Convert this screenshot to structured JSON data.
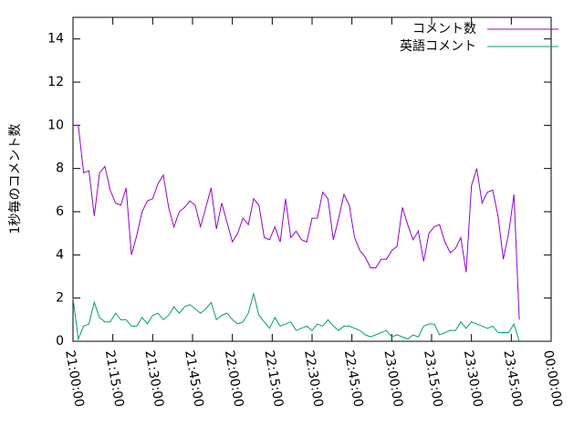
{
  "chart_data": {
    "type": "line",
    "ylabel": "1秒毎のコメント数",
    "x": [
      "21:00:00",
      "21:02:00",
      "21:04:00",
      "21:06:00",
      "21:08:00",
      "21:10:00",
      "21:12:00",
      "21:14:00",
      "21:16:00",
      "21:18:00",
      "21:20:00",
      "21:22:00",
      "21:24:00",
      "21:26:00",
      "21:28:00",
      "21:30:00",
      "21:32:00",
      "21:34:00",
      "21:36:00",
      "21:38:00",
      "21:40:00",
      "21:42:00",
      "21:44:00",
      "21:46:00",
      "21:48:00",
      "21:50:00",
      "21:52:00",
      "21:54:00",
      "21:56:00",
      "21:58:00",
      "22:00:00",
      "22:02:00",
      "22:04:00",
      "22:06:00",
      "22:08:00",
      "22:10:00",
      "22:12:00",
      "22:14:00",
      "22:16:00",
      "22:18:00",
      "22:20:00",
      "22:22:00",
      "22:24:00",
      "22:26:00",
      "22:28:00",
      "22:30:00",
      "22:32:00",
      "22:34:00",
      "22:36:00",
      "22:38:00",
      "22:40:00",
      "22:42:00",
      "22:44:00",
      "22:46:00",
      "22:48:00",
      "22:50:00",
      "22:52:00",
      "22:54:00",
      "22:56:00",
      "22:58:00",
      "23:00:00",
      "23:02:00",
      "23:04:00",
      "23:06:00",
      "23:08:00",
      "23:10:00",
      "23:12:00",
      "23:14:00",
      "23:16:00",
      "23:18:00",
      "23:20:00",
      "23:22:00",
      "23:24:00",
      "23:26:00",
      "23:28:00",
      "23:30:00",
      "23:32:00",
      "23:34:00",
      "23:36:00",
      "23:38:00",
      "23:40:00",
      "23:42:00",
      "23:44:00",
      "23:46:00",
      "23:48:00"
    ],
    "series": [
      {
        "name": "コメント数",
        "color": "#9400d3",
        "values": [
          10,
          10,
          7.8,
          7.9,
          5.8,
          7.8,
          8.1,
          7,
          6.4,
          6.3,
          7.1,
          4,
          4.9,
          6,
          6.5,
          6.6,
          7.3,
          7.7,
          6.2,
          5.3,
          6,
          6.2,
          6.5,
          6.3,
          5.3,
          6.2,
          7.1,
          5.2,
          6.4,
          5.5,
          4.6,
          5,
          5.7,
          5.4,
          6.6,
          6.3,
          4.8,
          4.7,
          5.3,
          4.6,
          6.6,
          4.8,
          5.1,
          4.7,
          4.6,
          5.7,
          5.7,
          6.9,
          6.6,
          4.7,
          5.7,
          6.8,
          6.3,
          4.8,
          4.2,
          3.9,
          3.4,
          3.4,
          3.8,
          3.8,
          4.2,
          4.4,
          6.2,
          5.4,
          4.7,
          5.1,
          3.7,
          5,
          5.3,
          5.4,
          4.6,
          4.1,
          4.3,
          4.8,
          3.2,
          7.2,
          8,
          6.4,
          6.9,
          7,
          5.8,
          3.8,
          5,
          6.8,
          1
        ]
      },
      {
        "name": "英語コメント",
        "color": "#009e73",
        "values": [
          2,
          0.1,
          0.7,
          0.8,
          1.8,
          1.1,
          0.9,
          0.9,
          1.3,
          1,
          1,
          0.7,
          0.7,
          1.1,
          0.8,
          1.2,
          1.3,
          1,
          1.2,
          1.6,
          1.3,
          1.6,
          1.7,
          1.5,
          1.3,
          1.5,
          1.8,
          1,
          1.2,
          1.3,
          1,
          0.8,
          0.9,
          1.3,
          2.2,
          1.2,
          0.9,
          0.6,
          1.1,
          0.7,
          0.8,
          0.9,
          0.5,
          0.6,
          0.7,
          0.5,
          0.8,
          0.7,
          1,
          0.7,
          0.5,
          0.7,
          0.7,
          0.6,
          0.5,
          0.3,
          0.2,
          0.3,
          0.4,
          0.5,
          0.2,
          0.3,
          0.2,
          0.1,
          0.3,
          0.2,
          0.7,
          0.8,
          0.8,
          0.3,
          0.4,
          0.5,
          0.5,
          0.9,
          0.6,
          0.9,
          0.8,
          0.7,
          0.6,
          0.7,
          0.4,
          0.4,
          0.4,
          0.8,
          0
        ]
      }
    ],
    "xlim": [
      "21:00:00",
      "00:00:00"
    ],
    "xticks": [
      "21:00:00",
      "21:15:00",
      "21:30:00",
      "21:45:00",
      "22:00:00",
      "22:15:00",
      "22:30:00",
      "22:45:00",
      "23:00:00",
      "23:15:00",
      "23:30:00",
      "23:45:00",
      "00:00:00"
    ],
    "ylim": [
      0,
      15
    ],
    "yticks": [
      0,
      2,
      4,
      6,
      8,
      10,
      12,
      14
    ],
    "legend": "top-right"
  }
}
